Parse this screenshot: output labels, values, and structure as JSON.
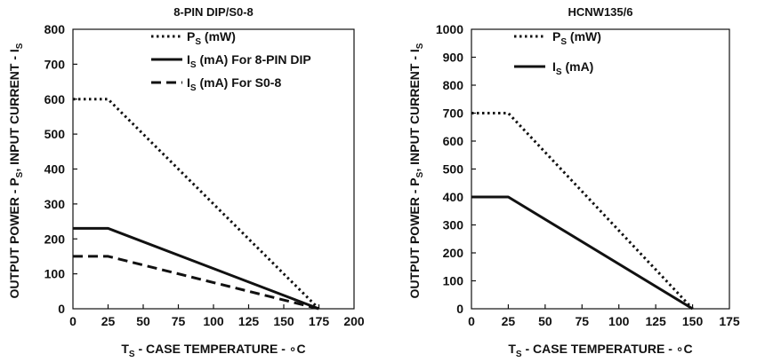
{
  "chart_data": [
    {
      "type": "line",
      "title": "8-PIN DIP/S0-8",
      "xlabel": "T_S - CASE TEMPERATURE - °C",
      "ylabel": "OUTPUT POWER - P_S, INPUT CURRENT - I_S",
      "xlabel_parts": {
        "main": "T",
        "sub": "S",
        "rest": " -  CASE TEMPERATURE - ∘C"
      },
      "ylabel_parts": {
        "a": "OUTPUT POWER - P",
        "a_sub": "S",
        "b": ", INPUT CURRENT - I",
        "b_sub": "S"
      },
      "xlim": [
        0,
        200
      ],
      "ylim": [
        0,
        800
      ],
      "xticks": [
        0,
        25,
        50,
        75,
        100,
        125,
        150,
        175,
        200
      ],
      "yticks": [
        0,
        100,
        200,
        300,
        400,
        500,
        600,
        700,
        800
      ],
      "grid": false,
      "legend_position": "top-right",
      "series": [
        {
          "name": "P_S (mW)",
          "label_main": "P",
          "label_sub": "S",
          "label_rest": " (mW)",
          "style": "dotted",
          "x": [
            0,
            25,
            175
          ],
          "y": [
            600,
            600,
            0
          ]
        },
        {
          "name": "I_S (mA) For 8-PIN DIP",
          "label_main": "I",
          "label_sub": "S",
          "label_rest": " (mA) For 8-PIN DIP",
          "style": "solid",
          "x": [
            0,
            25,
            175
          ],
          "y": [
            230,
            230,
            0
          ]
        },
        {
          "name": "I_S (mA) For S0-8",
          "label_main": "I",
          "label_sub": "S",
          "label_rest": " (mA) For S0-8",
          "style": "dashed",
          "x": [
            0,
            25,
            175
          ],
          "y": [
            150,
            150,
            0
          ]
        }
      ]
    },
    {
      "type": "line",
      "title": "HCNW135/6",
      "xlabel": "T_S - CASE TEMPERATURE - °C",
      "ylabel": "OUTPUT POWER - P_S, INPUT CURRENT - I_S",
      "xlabel_parts": {
        "main": "T",
        "sub": "S",
        "rest": " -  CASE TEMPERATURE - ∘C"
      },
      "ylabel_parts": {
        "a": "OUTPUT POWER - P",
        "a_sub": "S",
        "b": ", INPUT CURRENT - I",
        "b_sub": "S"
      },
      "xlim": [
        0,
        175
      ],
      "ylim": [
        0,
        1000
      ],
      "xticks": [
        0,
        25,
        50,
        75,
        100,
        125,
        150,
        175
      ],
      "yticks": [
        0,
        100,
        200,
        300,
        400,
        500,
        600,
        700,
        800,
        900,
        1000
      ],
      "grid": false,
      "legend_position": "top-left",
      "series": [
        {
          "name": "P_S (mW)",
          "label_main": "P",
          "label_sub": "S",
          "label_rest": " (mW)",
          "style": "dotted",
          "x": [
            0,
            25,
            150
          ],
          "y": [
            700,
            700,
            0
          ]
        },
        {
          "name": "I_S (mA)",
          "label_main": "I",
          "label_sub": "S",
          "label_rest": " (mA)",
          "style": "solid",
          "x": [
            0,
            25,
            150
          ],
          "y": [
            400,
            400,
            0
          ]
        }
      ]
    }
  ],
  "colors": {
    "ink": "#111111",
    "background": "#ffffff"
  }
}
